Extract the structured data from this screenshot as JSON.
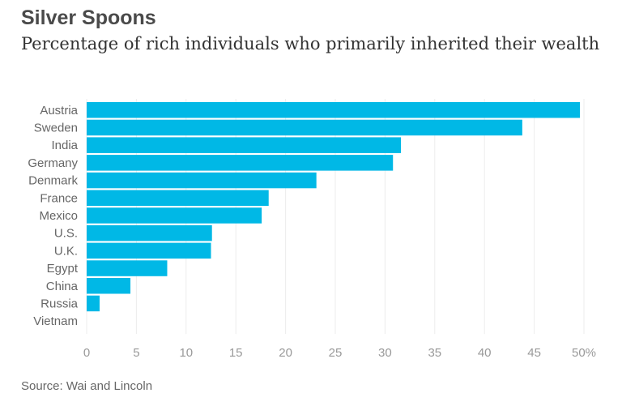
{
  "chart_data": {
    "type": "bar",
    "orientation": "horizontal",
    "title": "Silver Spoons",
    "subtitle": "Percentage of rich individuals who primarily inherited their wealth",
    "source": "Source: Wai and Lincoln",
    "categories": [
      "Austria",
      "Sweden",
      "India",
      "Germany",
      "Denmark",
      "France",
      "Mexico",
      "U.S.",
      "U.K.",
      "Egypt",
      "China",
      "Russia",
      "Vietnam"
    ],
    "values": [
      49.6,
      43.8,
      31.6,
      30.8,
      23.1,
      18.3,
      17.6,
      12.6,
      12.5,
      8.1,
      4.4,
      1.3,
      0
    ],
    "xlim": [
      0,
      50
    ],
    "xticks": [
      0,
      5,
      10,
      15,
      20,
      25,
      30,
      35,
      40,
      45,
      50
    ],
    "xtick_labels": [
      "0",
      "5",
      "10",
      "15",
      "20",
      "25",
      "30",
      "35",
      "40",
      "45",
      "50%"
    ],
    "grid": "vertical",
    "bar_color": "#00b8e6"
  }
}
